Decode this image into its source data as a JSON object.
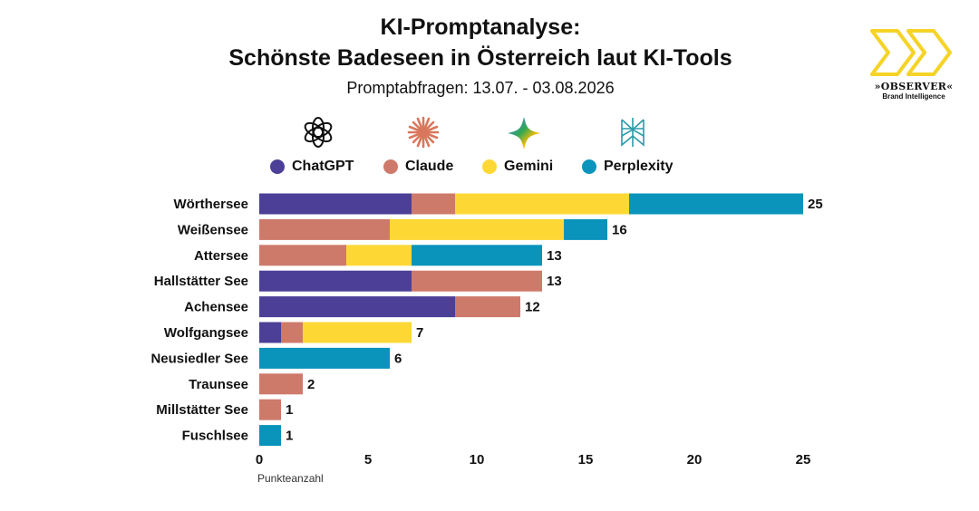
{
  "header": {
    "title_line1": "KI-Promptanalyse:",
    "title_line2": "Schönste Badeseen in Österreich laut KI-Tools",
    "subtitle": "Promptabfragen: 13.07. - 03.08.2026"
  },
  "brand": {
    "name": "»OBSERVER«",
    "tagline": "Brand Intelligence",
    "logo_icon": "double-chevron-icon",
    "logo_color": "#F5D327"
  },
  "tool_icons": [
    "chatgpt-icon",
    "claude-icon",
    "gemini-icon",
    "perplexity-icon"
  ],
  "colors": {
    "ChatGPT": "#4B3F98",
    "Claude": "#CE7A6B",
    "Gemini": "#FDD835",
    "Perplexity": "#0A93BB"
  },
  "chart_data": {
    "type": "bar",
    "orientation": "horizontal",
    "stacked": true,
    "categories": [
      "Wörthersee",
      "Weißensee",
      "Attersee",
      "Hallstätter See",
      "Achensee",
      "Wolfgangsee",
      "Neusiedler See",
      "Traunsee",
      "Millstätter See",
      "Fuschlsee"
    ],
    "series": [
      {
        "name": "ChatGPT",
        "values": [
          7,
          0,
          0,
          7,
          9,
          1,
          0,
          0,
          0,
          0
        ]
      },
      {
        "name": "Claude",
        "values": [
          2,
          6,
          4,
          6,
          3,
          1,
          0,
          2,
          1,
          0
        ]
      },
      {
        "name": "Gemini",
        "values": [
          8,
          8,
          3,
          0,
          0,
          5,
          0,
          0,
          0,
          0
        ]
      },
      {
        "name": "Perplexity",
        "values": [
          8,
          2,
          6,
          0,
          0,
          0,
          6,
          0,
          0,
          1
        ]
      }
    ],
    "totals": [
      25,
      16,
      13,
      13,
      12,
      7,
      6,
      2,
      1,
      1
    ],
    "xlim": [
      0,
      25
    ],
    "xticks": [
      0,
      5,
      10,
      15,
      20,
      25
    ],
    "xlabel": "Punkteanzahl",
    "legend_position": "top",
    "grid": false
  }
}
